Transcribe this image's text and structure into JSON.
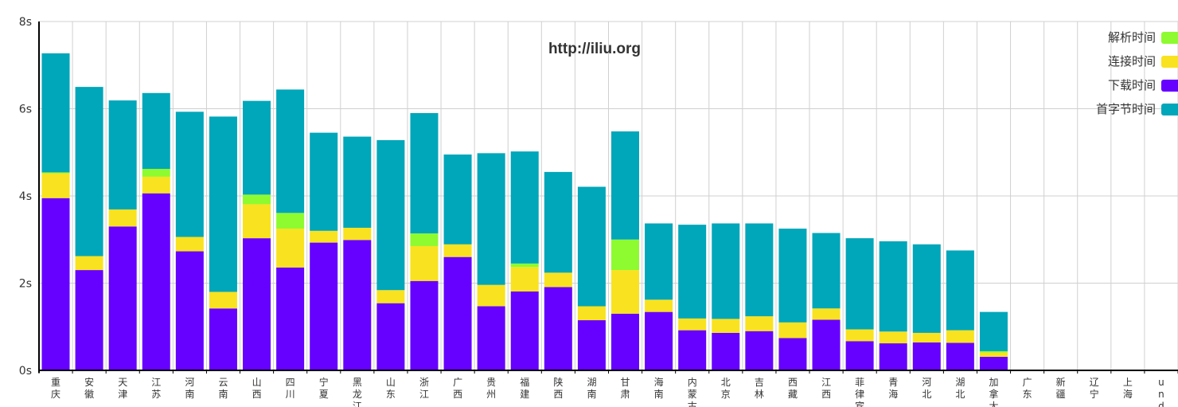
{
  "chart_data": {
    "type": "bar",
    "stacked": true,
    "watermark": "http://iliu.org",
    "ylim": [
      0,
      8
    ],
    "yticks": [
      "0s",
      "2s",
      "4s",
      "6s",
      "8s"
    ],
    "grid": true,
    "legend_position": "top-right",
    "categories": [
      "重庆",
      "安徽",
      "天津",
      "江苏",
      "河南",
      "云南",
      "山西",
      "四川",
      "宁夏",
      "黑龙江",
      "山东",
      "浙江",
      "广西",
      "贵州",
      "福建",
      "陕西",
      "湖南",
      "甘肃",
      "海南",
      "内蒙古",
      "北京",
      "吉林",
      "西藏",
      "江西",
      "菲律宾",
      "青海",
      "河北",
      "湖北",
      "加拿大",
      "广东",
      "新疆",
      "辽宁",
      "上海",
      "und"
    ],
    "series": [
      {
        "name": "下载时间",
        "color": "#6600ff",
        "values": [
          3.95,
          2.3,
          3.3,
          4.06,
          2.73,
          1.42,
          3.03,
          2.36,
          2.93,
          2.99,
          1.54,
          2.05,
          2.6,
          1.47,
          1.81,
          1.91,
          1.15,
          1.3,
          1.34,
          0.92,
          0.86,
          0.9,
          0.74,
          1.16,
          0.67,
          0.62,
          0.64,
          0.63,
          0.31,
          0,
          0,
          0,
          0,
          0
        ]
      },
      {
        "name": "连接时间",
        "color": "#f9e21f",
        "values": [
          0.57,
          0.32,
          0.39,
          0.38,
          0.33,
          0.38,
          0.78,
          0.89,
          0.27,
          0.28,
          0.3,
          0.8,
          0.29,
          0.49,
          0.56,
          0.33,
          0.32,
          1.0,
          0.28,
          0.27,
          0.32,
          0.34,
          0.36,
          0.26,
          0.27,
          0.27,
          0.22,
          0.29,
          0.1,
          0,
          0,
          0,
          0,
          0
        ]
      },
      {
        "name": "解析时间",
        "color": "#8dfb2f",
        "values": [
          0.02,
          0,
          0,
          0.18,
          0,
          0,
          0.22,
          0.36,
          0,
          0,
          0,
          0.29,
          0,
          0,
          0.08,
          0,
          0,
          0.7,
          0,
          0,
          0,
          0,
          0,
          0,
          0,
          0,
          0,
          0,
          0.03,
          0,
          0,
          0,
          0,
          0
        ]
      },
      {
        "name": "首字节时间",
        "color": "#00a6b9",
        "values": [
          2.73,
          3.88,
          2.5,
          1.74,
          2.87,
          4.02,
          2.15,
          2.83,
          2.25,
          2.09,
          3.44,
          2.76,
          2.06,
          3.02,
          2.57,
          2.31,
          2.74,
          2.48,
          1.75,
          2.15,
          2.19,
          2.13,
          2.15,
          1.73,
          2.09,
          2.07,
          2.03,
          1.83,
          0.9,
          0,
          0,
          0,
          0,
          0
        ]
      }
    ]
  }
}
